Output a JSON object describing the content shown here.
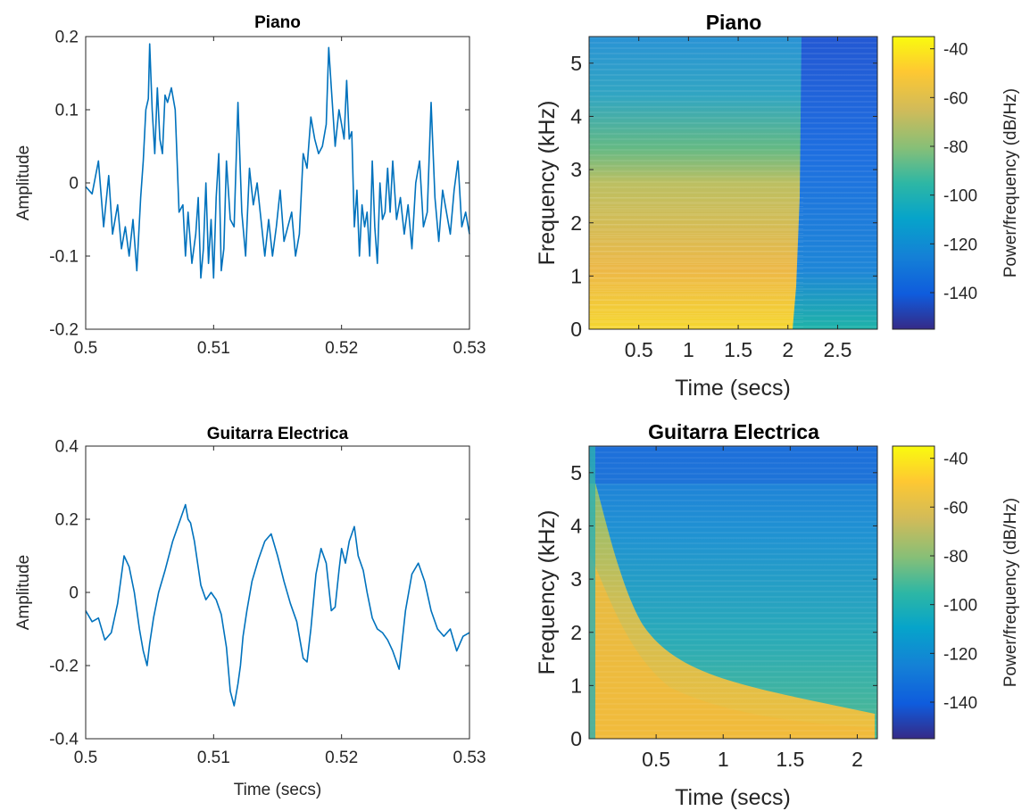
{
  "chart_data": [
    {
      "type": "line",
      "title": "Piano",
      "xlabel": "",
      "ylabel": "Amplitude",
      "xlim": [
        0.5,
        0.53
      ],
      "ylim": [
        -0.2,
        0.2
      ],
      "xticks": [
        "0.5",
        "0.51",
        "0.52",
        "0.53"
      ],
      "yticks": [
        "-0.2",
        "-0.1",
        "0",
        "0.1",
        "0.2"
      ],
      "color": "#0072BD",
      "series": [
        {
          "x": [
            0.5,
            0.5005,
            0.501,
            0.5014,
            0.5018,
            0.5021,
            0.5025,
            0.5028,
            0.5031,
            0.5034,
            0.5037,
            0.504,
            0.5043,
            0.5045,
            0.5047,
            0.5049,
            0.505,
            0.5052,
            0.5054,
            0.5056,
            0.5058,
            0.506,
            0.5062,
            0.5064,
            0.5067,
            0.507,
            0.5073,
            0.5076,
            0.5078,
            0.508,
            0.5083,
            0.5086,
            0.5088,
            0.509,
            0.5092,
            0.5094,
            0.5096,
            0.5098,
            0.51,
            0.5102,
            0.5104,
            0.5106,
            0.5108,
            0.511,
            0.5113,
            0.5116,
            0.5119,
            0.5122,
            0.5125,
            0.5128,
            0.5131,
            0.5134,
            0.5137,
            0.514,
            0.5143,
            0.5146,
            0.5149,
            0.5152,
            0.5155,
            0.5158,
            0.5161,
            0.5164,
            0.5167,
            0.517,
            0.5173,
            0.5176,
            0.5179,
            0.5182,
            0.5185,
            0.5188,
            0.519,
            0.5192,
            0.5195,
            0.5198,
            0.52,
            0.5202,
            0.5204,
            0.5206,
            0.5208,
            0.521,
            0.5212,
            0.5214,
            0.5216,
            0.5218,
            0.522,
            0.5222,
            0.5224,
            0.5226,
            0.5228,
            0.523,
            0.5232,
            0.5234,
            0.5236,
            0.5238,
            0.524,
            0.5243,
            0.5246,
            0.5249,
            0.5252,
            0.5255,
            0.5258,
            0.5261,
            0.5264,
            0.5267,
            0.527,
            0.5273,
            0.5276,
            0.5279,
            0.5282,
            0.5285,
            0.5288,
            0.5291,
            0.5294,
            0.5297,
            0.53
          ],
          "y": [
            -0.005,
            -0.015,
            0.03,
            -0.06,
            0.01,
            -0.07,
            -0.03,
            -0.09,
            -0.06,
            -0.1,
            -0.05,
            -0.12,
            -0.02,
            0.03,
            0.1,
            0.115,
            0.19,
            0.1,
            0.04,
            0.13,
            0.06,
            0.04,
            0.12,
            0.11,
            0.13,
            0.1,
            -0.04,
            -0.03,
            -0.1,
            -0.04,
            -0.11,
            -0.07,
            -0.02,
            -0.13,
            -0.09,
            0.0,
            -0.11,
            -0.05,
            -0.13,
            -0.02,
            0.04,
            -0.12,
            -0.09,
            0.03,
            -0.05,
            -0.06,
            0.11,
            -0.04,
            -0.1,
            0.02,
            -0.03,
            0.0,
            -0.05,
            -0.1,
            -0.05,
            -0.1,
            -0.06,
            -0.01,
            -0.08,
            -0.06,
            -0.04,
            -0.1,
            -0.07,
            0.04,
            0.02,
            0.09,
            0.06,
            0.04,
            0.05,
            0.08,
            0.185,
            0.13,
            0.05,
            0.1,
            0.08,
            0.06,
            0.14,
            0.06,
            0.07,
            -0.06,
            -0.01,
            -0.1,
            -0.03,
            -0.06,
            -0.04,
            -0.1,
            0.03,
            -0.06,
            -0.11,
            0.0,
            -0.05,
            -0.04,
            0.02,
            -0.04,
            0.03,
            -0.05,
            -0.02,
            -0.07,
            -0.03,
            -0.09,
            0.0,
            0.03,
            -0.06,
            -0.04,
            0.11,
            -0.02,
            -0.08,
            -0.01,
            -0.04,
            -0.07,
            -0.01,
            0.03,
            -0.06,
            -0.04,
            -0.07
          ]
        }
      ]
    },
    {
      "type": "heatmap",
      "title": "Piano",
      "xlabel": "Time (secs)",
      "ylabel": "Frequency (kHz)",
      "xlim": [
        0,
        2.9
      ],
      "ylim": [
        0,
        5.5
      ],
      "xticks": [
        "0.5",
        "1",
        "1.5",
        "2",
        "2.5"
      ],
      "yticks": [
        "0",
        "1",
        "2",
        "3",
        "4",
        "5"
      ],
      "colorbar": {
        "label": "Power/frequency (dB/Hz)",
        "range": [
          -155,
          -35
        ],
        "ticks": [
          "-40",
          "-60",
          "-80",
          "-100",
          "-120",
          "-140"
        ]
      },
      "note_end_secs": 2.1
    },
    {
      "type": "line",
      "title": "Guitarra Electrica",
      "xlabel": "Time (secs)",
      "ylabel": "Amplitude",
      "xlim": [
        0.5,
        0.53
      ],
      "ylim": [
        -0.4,
        0.4
      ],
      "xticks": [
        "0.5",
        "0.51",
        "0.52",
        "0.53"
      ],
      "yticks": [
        "-0.4",
        "-0.2",
        "0",
        "0.2",
        "0.4"
      ],
      "color": "#0072BD",
      "series": [
        {
          "x": [
            0.5,
            0.5005,
            0.501,
            0.5015,
            0.502,
            0.5025,
            0.503,
            0.5034,
            0.5038,
            0.5042,
            0.5045,
            0.5048,
            0.505,
            0.5053,
            0.5057,
            0.5062,
            0.5068,
            0.5074,
            0.5078,
            0.508,
            0.5082,
            0.5085,
            0.509,
            0.5094,
            0.5098,
            0.5102,
            0.5106,
            0.511,
            0.5113,
            0.5116,
            0.5119,
            0.5121,
            0.5123,
            0.5126,
            0.513,
            0.5135,
            0.514,
            0.5145,
            0.515,
            0.5155,
            0.516,
            0.5165,
            0.517,
            0.5173,
            0.5176,
            0.518,
            0.5184,
            0.5188,
            0.5192,
            0.5195,
            0.5198,
            0.52,
            0.5203,
            0.5206,
            0.521,
            0.5213,
            0.5217,
            0.522,
            0.5224,
            0.5228,
            0.5232,
            0.5236,
            0.524,
            0.5245,
            0.525,
            0.5255,
            0.526,
            0.5265,
            0.527,
            0.5275,
            0.528,
            0.5285,
            0.529,
            0.5295,
            0.53
          ],
          "y": [
            -0.05,
            -0.08,
            -0.07,
            -0.13,
            -0.11,
            -0.03,
            0.1,
            0.07,
            0.0,
            -0.1,
            -0.16,
            -0.2,
            -0.14,
            -0.07,
            0.0,
            0.06,
            0.14,
            0.2,
            0.24,
            0.2,
            0.19,
            0.14,
            0.02,
            -0.02,
            0.0,
            -0.02,
            -0.06,
            -0.15,
            -0.27,
            -0.31,
            -0.25,
            -0.2,
            -0.12,
            -0.05,
            0.03,
            0.09,
            0.14,
            0.16,
            0.1,
            0.03,
            -0.03,
            -0.08,
            -0.18,
            -0.19,
            -0.1,
            0.05,
            0.12,
            0.08,
            -0.05,
            -0.04,
            0.06,
            0.12,
            0.08,
            0.14,
            0.18,
            0.1,
            0.06,
            0.0,
            -0.07,
            -0.1,
            -0.11,
            -0.13,
            -0.16,
            -0.21,
            -0.05,
            0.05,
            0.08,
            0.03,
            -0.05,
            -0.1,
            -0.12,
            -0.1,
            -0.16,
            -0.12,
            -0.11
          ]
        }
      ]
    },
    {
      "type": "heatmap",
      "title": "Guitarra Electrica",
      "xlabel": "Time (secs)",
      "ylabel": "Frequency (kHz)",
      "xlim": [
        0,
        2.15
      ],
      "ylim": [
        0,
        5.5
      ],
      "xticks": [
        "0.5",
        "1",
        "1.5",
        "2"
      ],
      "yticks": [
        "0",
        "1",
        "2",
        "3",
        "4",
        "5"
      ],
      "colorbar": {
        "label": "Power/frequency (dB/Hz)",
        "range": [
          -155,
          -35
        ],
        "ticks": [
          "-40",
          "-60",
          "-80",
          "-100",
          "-120",
          "-140"
        ]
      }
    }
  ]
}
